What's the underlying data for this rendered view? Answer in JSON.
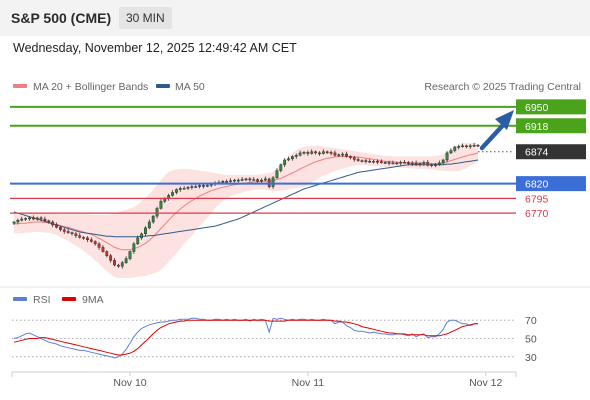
{
  "header": {
    "symbol": "S&P 500 (CME)",
    "interval": "30 MIN",
    "datetime": "Wednesday, November 12, 2025 12:49:42 AM CET",
    "credit": "Research © 2025 Trading Central"
  },
  "colors": {
    "green": "#4aa31a",
    "blue": "#3c6ed8",
    "red": "#e0384a",
    "dark": "#333333",
    "ma20": "#f08080",
    "bands_fill": "#fde2e2",
    "ma50": "#2f5b8a",
    "candle_up": "#2e8b3a",
    "candle_down": "#c0392b",
    "rsi": "#5b7fd6",
    "rsi_ma": "#e00000",
    "arrow": "#2a5ea8"
  },
  "chart_data": [
    {
      "type": "candlestick",
      "legend": [
        {
          "name": "MA 20 + Bollinger Bands",
          "color": "#f08080"
        },
        {
          "name": "MA 50",
          "color": "#2f5b8a"
        }
      ],
      "levels": [
        {
          "value": 6950,
          "label": "6950",
          "color": "#4aa31a",
          "style": "solid",
          "badge": true
        },
        {
          "value": 6918,
          "label": "6918",
          "color": "#4aa31a",
          "style": "solid",
          "badge": true
        },
        {
          "value": 6874,
          "label": "6874",
          "color": "#333333",
          "style": "dotted",
          "badge": true
        },
        {
          "value": 6820,
          "label": "6820",
          "color": "#3c6ed8",
          "style": "solid",
          "badge": true
        },
        {
          "value": 6795,
          "label": "6795",
          "color": "#e0384a",
          "style": "solid",
          "badge": false
        },
        {
          "value": 6770,
          "label": "6770",
          "color": "#e0384a",
          "style": "solid",
          "badge": false
        }
      ],
      "x_ticks": [
        {
          "label": "Nov 10",
          "index": 30
        },
        {
          "label": "Nov 11",
          "index": 76
        },
        {
          "label": "Nov 12",
          "index": 122
        }
      ],
      "ylim": [
        6650,
        6965
      ],
      "close": [
        6755,
        6758,
        6760,
        6761,
        6762,
        6760,
        6762,
        6760,
        6757,
        6755,
        6750,
        6746,
        6742,
        6739,
        6737,
        6735,
        6732,
        6729,
        6728,
        6725,
        6722,
        6718,
        6712,
        6705,
        6698,
        6690,
        6682,
        6680,
        6686,
        6693,
        6705,
        6718,
        6728,
        6735,
        6745,
        6755,
        6765,
        6778,
        6790,
        6795,
        6800,
        6805,
        6810,
        6812,
        6812,
        6814,
        6815,
        6815,
        6817,
        6816,
        6817,
        6820,
        6821,
        6822,
        6824,
        6824,
        6825,
        6826,
        6826,
        6827,
        6828,
        6827,
        6827,
        6824,
        6826,
        6828,
        6815,
        6830,
        6842,
        6852,
        6860,
        6862,
        6866,
        6868,
        6872,
        6873,
        6871,
        6874,
        6872,
        6871,
        6874,
        6873,
        6872,
        6868,
        6869,
        6870,
        6866,
        6864,
        6861,
        6859,
        6859,
        6858,
        6857,
        6858,
        6857,
        6856,
        6856,
        6855,
        6855,
        6855,
        6856,
        6856,
        6854,
        6855,
        6852,
        6854,
        6856,
        6851,
        6852,
        6852,
        6855,
        6860,
        6872,
        6876,
        6882,
        6883,
        6884,
        6883,
        6884,
        6885,
        6885
      ],
      "ma20": [
        6752,
        6752,
        6753,
        6753,
        6754,
        6755,
        6755,
        6755,
        6754,
        6754,
        6752,
        6751,
        6749,
        6747,
        6746,
        6744,
        6742,
        6740,
        6738,
        6736,
        6734,
        6731,
        6727,
        6724,
        6720,
        6716,
        6712,
        6710,
        6708,
        6708,
        6708,
        6710,
        6712,
        6715,
        6719,
        6724,
        6730,
        6737,
        6744,
        6751,
        6758,
        6765,
        6771,
        6777,
        6782,
        6787,
        6791,
        6795,
        6799,
        6802,
        6805,
        6808,
        6810,
        6812,
        6814,
        6815,
        6817,
        6818,
        6819,
        6820,
        6821,
        6822,
        6823,
        6823,
        6824,
        6824,
        6824,
        6825,
        6827,
        6829,
        6832,
        6835,
        6838,
        6841,
        6845,
        6848,
        6851,
        6854,
        6857,
        6859,
        6861,
        6863,
        6864,
        6865,
        6866,
        6866,
        6866,
        6866,
        6865,
        6865,
        6864,
        6863,
        6862,
        6861,
        6860,
        6859,
        6858,
        6857,
        6857,
        6856,
        6856,
        6856,
        6855,
        6855,
        6855,
        6855,
        6855,
        6855,
        6854,
        6854,
        6854,
        6855,
        6857,
        6859,
        6861,
        6863,
        6865,
        6867,
        6869,
        6870,
        6872
      ],
      "band_upper": [
        6768,
        6768,
        6768,
        6769,
        6769,
        6770,
        6770,
        6770,
        6770,
        6770,
        6769,
        6769,
        6768,
        6768,
        6768,
        6768,
        6768,
        6768,
        6768,
        6768,
        6767,
        6767,
        6767,
        6767,
        6767,
        6768,
        6770,
        6772,
        6774,
        6776,
        6778,
        6780,
        6785,
        6790,
        6796,
        6802,
        6810,
        6818,
        6826,
        6834,
        6840,
        6842,
        6844,
        6845,
        6845,
        6845,
        6844,
        6843,
        6842,
        6841,
        6840,
        6839,
        6838,
        6837,
        6836,
        6835,
        6835,
        6835,
        6835,
        6835,
        6835,
        6835,
        6835,
        6835,
        6836,
        6837,
        6838,
        6840,
        6846,
        6853,
        6860,
        6866,
        6872,
        6877,
        6880,
        6882,
        6883,
        6884,
        6884,
        6884,
        6883,
        6882,
        6881,
        6880,
        6879,
        6878,
        6877,
        6876,
        6875,
        6874,
        6873,
        6872,
        6871,
        6870,
        6869,
        6868,
        6867,
        6867,
        6866,
        6866,
        6866,
        6866,
        6866,
        6866,
        6866,
        6866,
        6866,
        6866,
        6866,
        6867,
        6868,
        6870,
        6874,
        6878,
        6882,
        6886,
        6888,
        6889,
        6889,
        6889,
        6888
      ],
      "band_lower": [
        6736,
        6736,
        6736,
        6737,
        6737,
        6738,
        6738,
        6738,
        6737,
        6737,
        6735,
        6733,
        6730,
        6726,
        6723,
        6719,
        6715,
        6711,
        6706,
        6701,
        6696,
        6690,
        6684,
        6678,
        6672,
        6666,
        6662,
        6660,
        6660,
        6660,
        6660,
        6661,
        6662,
        6663,
        6664,
        6666,
        6668,
        6670,
        6674,
        6680,
        6688,
        6695,
        6702,
        6710,
        6718,
        6725,
        6732,
        6740,
        6748,
        6755,
        6762,
        6770,
        6778,
        6785,
        6790,
        6795,
        6799,
        6801,
        6803,
        6805,
        6807,
        6808,
        6809,
        6810,
        6810,
        6810,
        6809,
        6807,
        6807,
        6808,
        6809,
        6810,
        6811,
        6812,
        6813,
        6815,
        6818,
        6822,
        6826,
        6830,
        6833,
        6836,
        6839,
        6841,
        6843,
        6845,
        6847,
        6849,
        6850,
        6851,
        6851,
        6851,
        6850,
        6850,
        6849,
        6849,
        6848,
        6848,
        6848,
        6848,
        6847,
        6847,
        6846,
        6846,
        6845,
        6845,
        6845,
        6845,
        6844,
        6843,
        6842,
        6842,
        6841,
        6841,
        6841,
        6841,
        6843,
        6846,
        6850,
        6853,
        6857
      ],
      "ma50": [
        6772,
        6770,
        6768,
        6766,
        6764,
        6762,
        6760,
        6758,
        6756,
        6754,
        6752,
        6750,
        6748,
        6746,
        6744,
        6742,
        6740,
        6738,
        6737,
        6736,
        6735,
        6734,
        6733,
        6732,
        6731,
        6731,
        6730,
        6730,
        6730,
        6730,
        6730,
        6730,
        6730,
        6731,
        6731,
        6732,
        6732,
        6733,
        6734,
        6735,
        6736,
        6737,
        6738,
        6739,
        6740,
        6741,
        6742,
        6743,
        6744,
        6745,
        6746,
        6747,
        6748,
        6750,
        6752,
        6754,
        6756,
        6758,
        6760,
        6763,
        6766,
        6769,
        6772,
        6775,
        6778,
        6781,
        6784,
        6787,
        6790,
        6793,
        6796,
        6799,
        6802,
        6805,
        6808,
        6811,
        6813,
        6815,
        6817,
        6819,
        6821,
        6823,
        6825,
        6827,
        6829,
        6831,
        6833,
        6835,
        6837,
        6839,
        6840,
        6841,
        6842,
        6843,
        6844,
        6845,
        6846,
        6847,
        6848,
        6849,
        6850,
        6851,
        6852,
        6852,
        6852,
        6852,
        6852,
        6852,
        6852,
        6852,
        6852,
        6852,
        6853,
        6853,
        6854,
        6855,
        6856,
        6857,
        6858,
        6859,
        6860
      ]
    },
    {
      "type": "line",
      "legend": [
        {
          "name": "RSI",
          "color": "#5b7fd6"
        },
        {
          "name": "9MA",
          "color": "#e00000"
        }
      ],
      "y_ticks": [
        70,
        50,
        30
      ],
      "ylim": [
        20,
        80
      ],
      "rsi": [
        50,
        51,
        53,
        55,
        56,
        54,
        52,
        50,
        48,
        46,
        45,
        44,
        42,
        41,
        40,
        39,
        38,
        37,
        37,
        36,
        35,
        34,
        33,
        32,
        31,
        30,
        29,
        30,
        33,
        38,
        45,
        52,
        57,
        61,
        63,
        65,
        66,
        67,
        68,
        68,
        69,
        70,
        70,
        71,
        71,
        71,
        72,
        72,
        71,
        71,
        70,
        70,
        71,
        71,
        70,
        71,
        70,
        71,
        70,
        70,
        71,
        69,
        71,
        70,
        71,
        70,
        57,
        72,
        71,
        72,
        71,
        70,
        71,
        70,
        71,
        71,
        70,
        71,
        70,
        70,
        71,
        70,
        70,
        66,
        68,
        68,
        64,
        62,
        59,
        58,
        58,
        57,
        56,
        57,
        56,
        55,
        55,
        54,
        54,
        55,
        55,
        54,
        53,
        55,
        52,
        54,
        55,
        51,
        52,
        52,
        55,
        60,
        68,
        70,
        70,
        68,
        66,
        66,
        64,
        66,
        66
      ],
      "ma9": [
        46,
        47,
        48,
        49,
        50,
        50,
        50,
        51,
        51,
        50,
        49,
        48,
        47,
        46,
        45,
        44,
        43,
        42,
        41,
        40,
        39,
        38,
        37,
        36,
        35,
        34,
        33,
        32,
        32,
        33,
        34,
        36,
        39,
        43,
        47,
        51,
        55,
        59,
        62,
        64,
        66,
        67,
        68,
        69,
        69,
        70,
        70,
        70,
        70,
        70,
        70,
        70,
        70,
        70,
        70,
        70,
        70,
        70,
        70,
        70,
        70,
        70,
        70,
        70,
        70,
        70,
        69,
        69,
        69,
        69,
        69,
        70,
        70,
        70,
        70,
        70,
        70,
        70,
        70,
        70,
        70,
        70,
        70,
        69,
        69,
        68,
        68,
        67,
        66,
        65,
        63,
        62,
        61,
        60,
        59,
        58,
        57,
        56,
        56,
        55,
        55,
        55,
        54,
        54,
        54,
        54,
        54,
        53,
        53,
        53,
        53,
        54,
        55,
        57,
        59,
        61,
        63,
        64,
        65,
        66,
        66
      ]
    }
  ]
}
